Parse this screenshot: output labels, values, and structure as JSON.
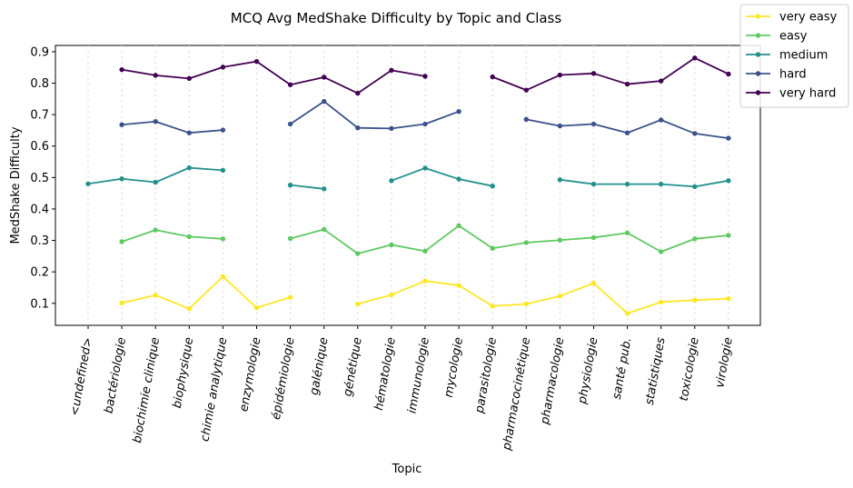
{
  "chart_data": {
    "type": "line",
    "title": "MCQ Avg MedShake Difficulty by Topic and Class",
    "xlabel": "Topic",
    "ylabel": "MedShake Difficulty",
    "ylim": [
      0.03,
      0.92
    ],
    "yticks": [
      0.1,
      0.2,
      0.3,
      0.4,
      0.5,
      0.6,
      0.7,
      0.8,
      0.9
    ],
    "ytick_labels": [
      "0.1",
      "0.2",
      "0.3",
      "0.4",
      "0.5",
      "0.6",
      "0.7",
      "0.8",
      "0.9"
    ],
    "grid": "vertical dotted",
    "legend": "top-right",
    "categories": [
      "<undefined>",
      "bactériologie",
      "biochimie clinique",
      "biophysique",
      "chimie analytique",
      "enzymologie",
      "épidémiologie",
      "galénique",
      "génétique",
      "hématologie",
      "immunologie",
      "mycologie",
      "parasitologie",
      "pharmacocinétique",
      "pharmacologie",
      "physiologie",
      "santé pub.",
      "statistiques",
      "toxicologie",
      "virologie"
    ],
    "series": [
      {
        "name": "very easy",
        "color": "#fde725",
        "values": [
          null,
          0.101,
          0.126,
          0.083,
          0.185,
          0.086,
          0.119,
          null,
          0.098,
          0.127,
          0.171,
          0.157,
          0.091,
          0.098,
          0.123,
          0.164,
          0.068,
          0.104,
          0.11,
          0.115
        ]
      },
      {
        "name": "easy",
        "color": "#5ec962",
        "values": [
          null,
          0.296,
          0.333,
          0.312,
          0.305,
          null,
          0.306,
          0.335,
          0.258,
          0.286,
          0.266,
          0.347,
          0.275,
          0.293,
          0.301,
          0.309,
          0.324,
          0.264,
          0.305,
          0.316
        ]
      },
      {
        "name": "medium",
        "color": "#21918c",
        "values": [
          0.48,
          0.496,
          0.485,
          0.531,
          0.523,
          null,
          0.476,
          0.464,
          null,
          0.49,
          0.53,
          0.495,
          0.473,
          null,
          0.493,
          0.479,
          0.479,
          0.479,
          0.471,
          0.49
        ]
      },
      {
        "name": "hard",
        "color": "#3b528b",
        "values": [
          null,
          0.668,
          0.678,
          0.642,
          0.651,
          null,
          0.67,
          0.742,
          0.658,
          0.656,
          0.67,
          0.71,
          null,
          0.685,
          0.664,
          0.67,
          0.642,
          0.683,
          0.64,
          0.625
        ]
      },
      {
        "name": "very hard",
        "color": "#440154",
        "values": [
          null,
          0.843,
          0.825,
          0.815,
          0.851,
          0.869,
          0.795,
          0.819,
          0.768,
          0.841,
          0.822,
          null,
          0.82,
          0.778,
          0.826,
          0.831,
          0.797,
          0.807,
          0.88,
          0.829
        ]
      }
    ]
  }
}
